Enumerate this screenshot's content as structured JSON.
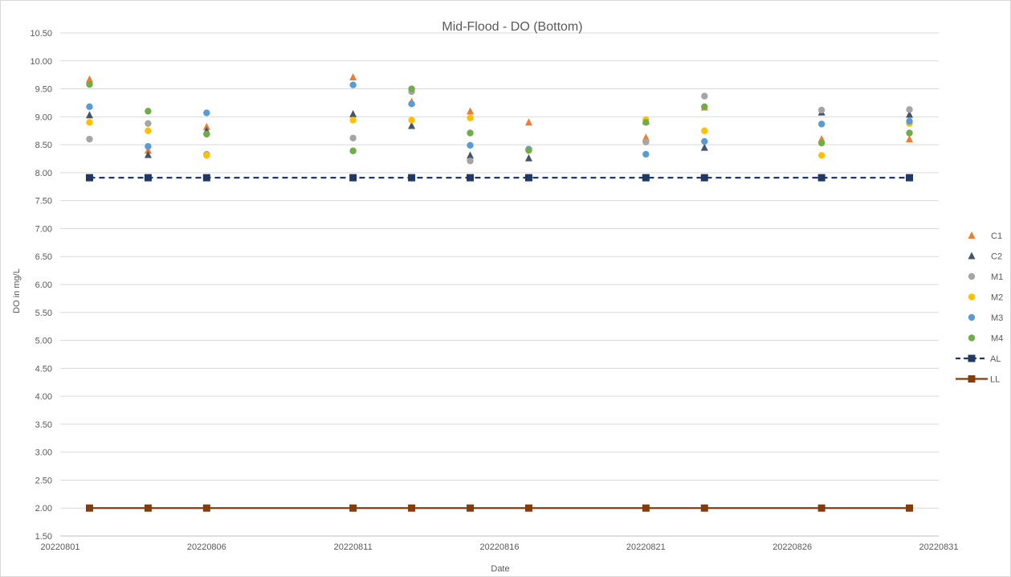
{
  "chart_data": {
    "type": "scatter",
    "title": "Mid-Flood - DO (Bottom)",
    "xlabel": "Date",
    "ylabel": "DO in mg/L",
    "xlim": [
      "20220801",
      "20220831"
    ],
    "ylim": [
      1.5,
      10.5
    ],
    "x_tick_labels": [
      "20220801",
      "20220806",
      "20220811",
      "20220816",
      "20220821",
      "20220826",
      "20220831"
    ],
    "y_tick_labels": [
      "1.50",
      "2.00",
      "2.50",
      "3.00",
      "3.50",
      "4.00",
      "4.50",
      "5.00",
      "5.50",
      "6.00",
      "6.50",
      "7.00",
      "7.50",
      "8.00",
      "8.50",
      "9.00",
      "9.50",
      "10.00",
      "10.50"
    ],
    "grid": "horizontal",
    "legend_position": "right",
    "x": [
      "20220802",
      "20220804",
      "20220806",
      "20220811",
      "20220813",
      "20220815",
      "20220817",
      "20220821",
      "20220823",
      "20220827",
      "20220830"
    ],
    "series": [
      {
        "name": "C1",
        "marker": "triangle",
        "color": "#ED7D31",
        "values": [
          9.67,
          8.4,
          8.82,
          9.71,
          9.27,
          9.1,
          8.9,
          8.63,
          9.17,
          8.6,
          8.6
        ]
      },
      {
        "name": "C2",
        "marker": "triangle",
        "color": "#44546A",
        "values": [
          9.03,
          8.32,
          8.75,
          9.05,
          8.84,
          8.31,
          8.26,
          8.92,
          8.45,
          9.08,
          9.04
        ]
      },
      {
        "name": "M1",
        "marker": "circle",
        "color": "#A5A5A5",
        "values": [
          8.6,
          8.88,
          8.33,
          8.62,
          9.45,
          8.21,
          8.42,
          8.55,
          9.37,
          9.12,
          9.13
        ]
      },
      {
        "name": "M2",
        "marker": "circle",
        "color": "#FFC000",
        "values": [
          8.9,
          8.75,
          8.31,
          8.94,
          8.94,
          8.98,
          8.4,
          8.95,
          8.75,
          8.31,
          8.88
        ]
      },
      {
        "name": "M3",
        "marker": "circle",
        "color": "#5B9BD5",
        "values": [
          9.18,
          8.47,
          9.07,
          9.57,
          9.23,
          8.49,
          8.42,
          8.33,
          8.56,
          8.87,
          8.92
        ]
      },
      {
        "name": "M4",
        "marker": "circle",
        "color": "#70AD47",
        "values": [
          9.58,
          9.1,
          8.69,
          8.39,
          9.5,
          8.71,
          8.4,
          8.9,
          9.18,
          8.53,
          8.71
        ]
      },
      {
        "name": "AL",
        "marker": "square",
        "line": "dashed",
        "color": "#203864",
        "values": [
          7.91,
          7.91,
          7.91,
          7.91,
          7.91,
          7.91,
          7.91,
          7.91,
          7.91,
          7.91,
          7.91
        ]
      },
      {
        "name": "LL",
        "marker": "square",
        "line": "solid",
        "color": "#843C0C",
        "values": [
          2.0,
          2.0,
          2.0,
          2.0,
          2.0,
          2.0,
          2.0,
          2.0,
          2.0,
          2.0,
          2.0
        ]
      }
    ]
  }
}
